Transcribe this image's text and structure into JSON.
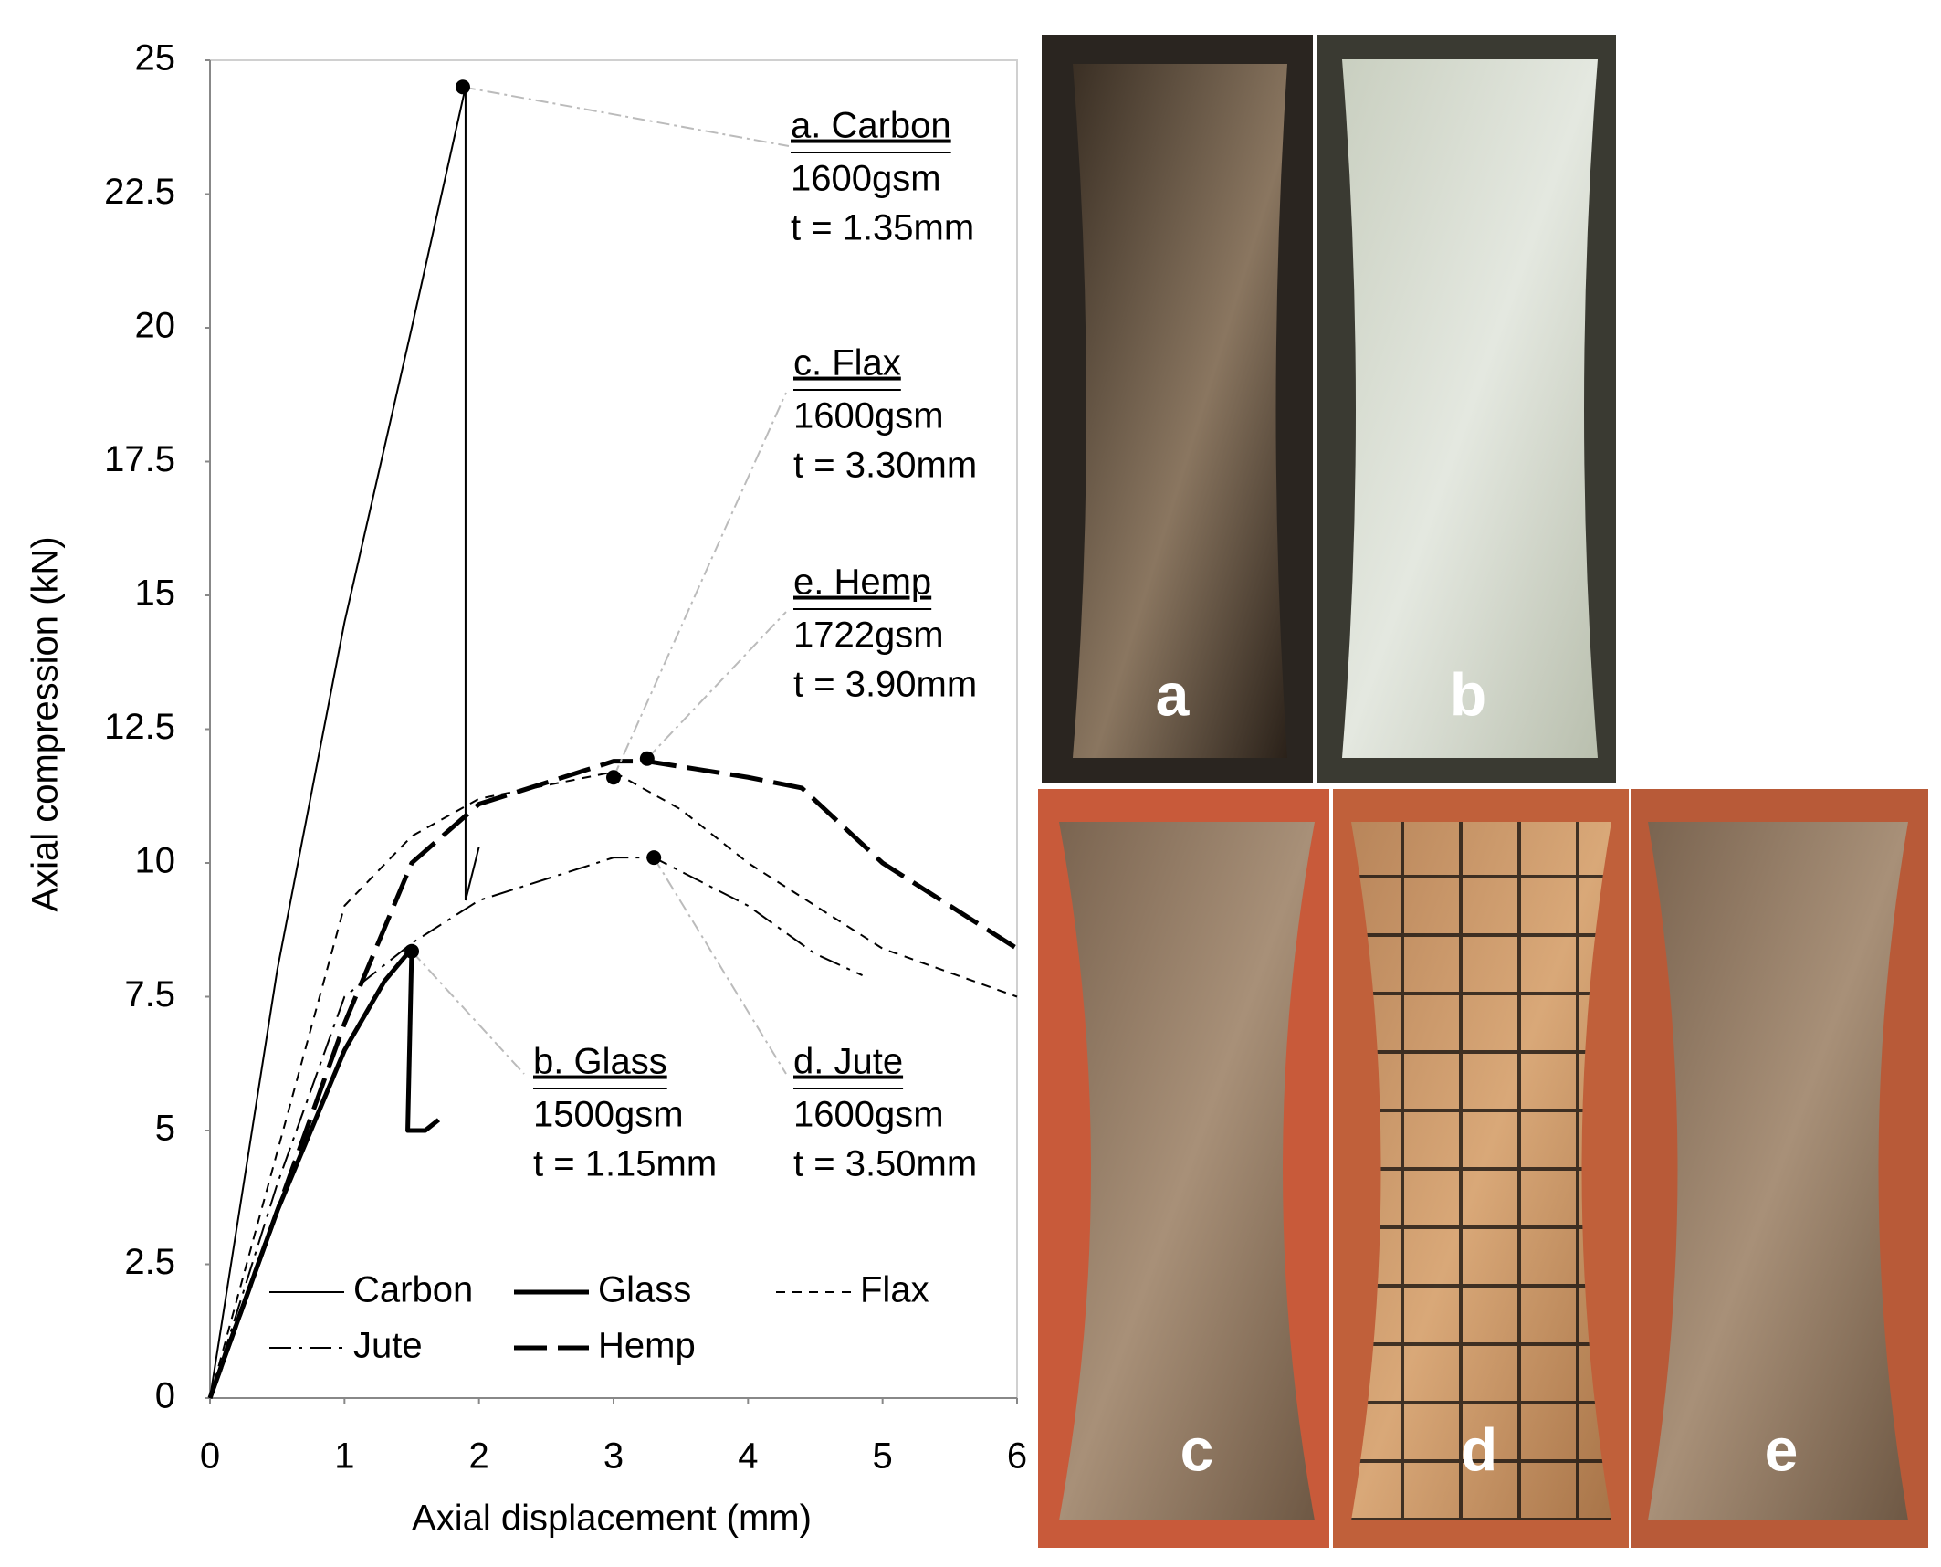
{
  "chart_data": {
    "type": "line",
    "x_label": "Axial displacement (mm)",
    "y_label": "Axial compression (kN)",
    "xlim": [
      0,
      6
    ],
    "xticks": [
      0,
      1,
      2,
      3,
      4,
      5,
      6
    ],
    "ylim": [
      0,
      25
    ],
    "yticks": [
      0,
      2.5,
      5,
      7.5,
      10,
      12.5,
      15,
      17.5,
      20,
      22.5,
      25
    ],
    "grid": false,
    "series": [
      {
        "name": "Carbon",
        "color": "#000000",
        "dash": "solid",
        "line_weight": "thin",
        "x": [
          0,
          0.5,
          1,
          1.5,
          1.9,
          1.9,
          null,
          1.9,
          2.0
        ],
        "values": [
          0,
          8,
          14.5,
          20,
          24.5,
          9.3,
          null,
          9.3,
          10.3
        ]
      },
      {
        "name": "Glass",
        "color": "#000000",
        "dash": "solid",
        "line_weight": "bold",
        "x": [
          0,
          0.5,
          1,
          1.3,
          1.5,
          1.47,
          1.6,
          1.7
        ],
        "values": [
          0,
          3.5,
          6.5,
          7.8,
          8.4,
          5.0,
          5.0,
          5.2
        ]
      },
      {
        "name": "Flax",
        "color": "#000000",
        "dash": "dashed",
        "line_weight": "thin",
        "x": [
          0,
          1,
          1.5,
          2,
          3,
          3.5,
          4,
          5,
          6
        ],
        "values": [
          0,
          9.2,
          10.5,
          11.2,
          11.7,
          11.0,
          10.0,
          8.4,
          7.5
        ]
      },
      {
        "name": "Jute",
        "color": "#000000",
        "dash": "dashdot",
        "line_weight": "thin",
        "x": [
          0,
          0.5,
          1,
          1.5,
          2,
          3,
          3.3,
          4,
          4.5,
          4.85
        ],
        "values": [
          0,
          4,
          7.5,
          8.5,
          9.3,
          10.1,
          10.1,
          9.2,
          8.3,
          7.9
        ]
      },
      {
        "name": "Hemp",
        "color": "#000000",
        "dash": "longdash",
        "line_weight": "bold",
        "x": [
          0,
          0.5,
          1,
          1.5,
          2,
          3,
          3.25,
          4,
          4.4,
          5,
          6
        ],
        "values": [
          0,
          3.5,
          7,
          10,
          11.1,
          11.9,
          11.9,
          11.6,
          11.4,
          10,
          8.4
        ]
      }
    ],
    "annotations": [
      {
        "label": "a. Carbon",
        "areal_weight": "1600gsm",
        "thickness": "t = 1.35mm",
        "point": [
          1.88,
          24.5
        ]
      },
      {
        "label": "b. Glass",
        "areal_weight": "1500gsm",
        "thickness": "t = 1.15mm",
        "point": [
          1.5,
          8.35
        ]
      },
      {
        "label": "c. Flax",
        "areal_weight": "1600gsm",
        "thickness": "t = 3.30mm",
        "point": [
          3.0,
          11.6
        ]
      },
      {
        "label": "d. Jute",
        "areal_weight": "1600gsm",
        "thickness": "t = 3.50mm",
        "point": [
          3.3,
          10.1
        ]
      },
      {
        "label": "e. Hemp",
        "areal_weight": "1722gsm",
        "thickness": "t = 3.90mm",
        "point": [
          3.25,
          11.95
        ]
      }
    ]
  },
  "photos": [
    {
      "label": "a"
    },
    {
      "label": "b"
    },
    {
      "label": "c"
    },
    {
      "label": "d"
    },
    {
      "label": "e"
    }
  ]
}
